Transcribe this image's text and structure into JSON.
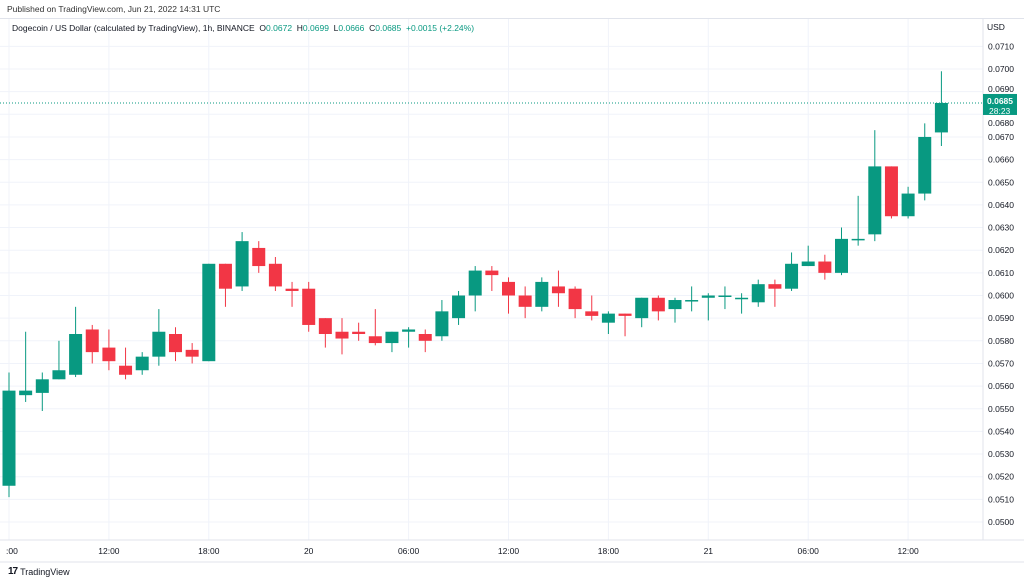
{
  "published": "Published on TradingView.com, Jun 21, 2022 14:31 UTC",
  "legend": {
    "symbol": "Dogecoin / US Dollar (calculated by TradingView), 1h, BINANCE",
    "o_label": "O",
    "o": "0.0672",
    "h_label": "H",
    "h": "0.0699",
    "l_label": "L",
    "l": "0.0666",
    "c_label": "C",
    "c": "0.0685",
    "change": "+0.0015 (+2.24%)"
  },
  "currency": "USD",
  "current_price": {
    "value": "0.0685",
    "countdown": "28:23"
  },
  "footer": {
    "brand": "TradingView"
  },
  "colors": {
    "up": "#089981",
    "down": "#f23645",
    "grid": "#f0f3fa",
    "text": "#131722"
  },
  "chart_data": {
    "type": "candlestick",
    "interval": "1h",
    "ylim": [
      0.0495,
      0.0715
    ],
    "y_ticks": [
      "0.0500",
      "0.0510",
      "0.0520",
      "0.0530",
      "0.0540",
      "0.0550",
      "0.0560",
      "0.0570",
      "0.0580",
      "0.0590",
      "0.0600",
      "0.0610",
      "0.0620",
      "0.0630",
      "0.0640",
      "0.0650",
      "0.0660",
      "0.0670",
      "0.0680",
      "0.0690",
      "0.0700",
      "0.0710"
    ],
    "x_ticks": [
      {
        "label": ":00",
        "index": 0
      },
      {
        "label": "12:00",
        "index": 6
      },
      {
        "label": "18:00",
        "index": 12
      },
      {
        "label": "20",
        "index": 18
      },
      {
        "label": "06:00",
        "index": 24
      },
      {
        "label": "12:00",
        "index": 30
      },
      {
        "label": "18:00",
        "index": 36
      },
      {
        "label": "21",
        "index": 42
      },
      {
        "label": "06:00",
        "index": 48
      },
      {
        "label": "12:00",
        "index": 54
      }
    ],
    "ohlc": [
      [
        0.0516,
        0.0566,
        0.0511,
        0.0558
      ],
      [
        0.0556,
        0.0584,
        0.0553,
        0.0558
      ],
      [
        0.0557,
        0.0566,
        0.0549,
        0.0563
      ],
      [
        0.0563,
        0.058,
        0.0563,
        0.0567
      ],
      [
        0.0565,
        0.0595,
        0.0564,
        0.0583
      ],
      [
        0.0585,
        0.0587,
        0.057,
        0.0575
      ],
      [
        0.0577,
        0.0585,
        0.0567,
        0.0571
      ],
      [
        0.0569,
        0.0577,
        0.0563,
        0.0565
      ],
      [
        0.0567,
        0.0575,
        0.0565,
        0.0573
      ],
      [
        0.0573,
        0.0594,
        0.0569,
        0.0584
      ],
      [
        0.0583,
        0.0586,
        0.0571,
        0.0575
      ],
      [
        0.0576,
        0.0579,
        0.057,
        0.0573
      ],
      [
        0.0571,
        0.0614,
        0.0571,
        0.0614
      ],
      [
        0.0614,
        0.0614,
        0.0595,
        0.0603
      ],
      [
        0.0604,
        0.0628,
        0.0602,
        0.0624
      ],
      [
        0.0621,
        0.0624,
        0.061,
        0.0613
      ],
      [
        0.0614,
        0.0617,
        0.0602,
        0.0604
      ],
      [
        0.0603,
        0.0606,
        0.0595,
        0.0602
      ],
      [
        0.0603,
        0.0606,
        0.0584,
        0.0587
      ],
      [
        0.059,
        0.059,
        0.0577,
        0.0583
      ],
      [
        0.0584,
        0.059,
        0.0574,
        0.0581
      ],
      [
        0.0584,
        0.0588,
        0.058,
        0.0583
      ],
      [
        0.0582,
        0.0594,
        0.0578,
        0.0579
      ],
      [
        0.0579,
        0.0584,
        0.0575,
        0.0584
      ],
      [
        0.0584,
        0.0586,
        0.0577,
        0.0585
      ],
      [
        0.0583,
        0.0585,
        0.0575,
        0.058
      ],
      [
        0.0582,
        0.0598,
        0.058,
        0.0593
      ],
      [
        0.059,
        0.0602,
        0.0587,
        0.06
      ],
      [
        0.06,
        0.0613,
        0.0593,
        0.0611
      ],
      [
        0.0611,
        0.0613,
        0.0602,
        0.0609
      ],
      [
        0.0606,
        0.0608,
        0.0592,
        0.06
      ],
      [
        0.06,
        0.0604,
        0.059,
        0.0595
      ],
      [
        0.0595,
        0.0608,
        0.0593,
        0.0606
      ],
      [
        0.0604,
        0.0611,
        0.0595,
        0.0601
      ],
      [
        0.0603,
        0.0604,
        0.059,
        0.0594
      ],
      [
        0.0593,
        0.06,
        0.0589,
        0.0591
      ],
      [
        0.0588,
        0.0593,
        0.0583,
        0.0592
      ],
      [
        0.0592,
        0.0592,
        0.0582,
        0.0591
      ],
      [
        0.059,
        0.0599,
        0.0586,
        0.0599
      ],
      [
        0.0599,
        0.06,
        0.0589,
        0.0593
      ],
      [
        0.0594,
        0.0599,
        0.0588,
        0.0598
      ],
      [
        0.0598,
        0.0604,
        0.0593,
        0.0598
      ],
      [
        0.0599,
        0.0601,
        0.0589,
        0.06
      ],
      [
        0.06,
        0.0604,
        0.0594,
        0.06
      ],
      [
        0.0599,
        0.0601,
        0.0592,
        0.0599
      ],
      [
        0.0597,
        0.0607,
        0.0595,
        0.0605
      ],
      [
        0.0605,
        0.0607,
        0.0595,
        0.0603
      ],
      [
        0.0603,
        0.0619,
        0.0602,
        0.0614
      ],
      [
        0.0613,
        0.0622,
        0.0613,
        0.0615
      ],
      [
        0.0615,
        0.0618,
        0.0607,
        0.061
      ],
      [
        0.061,
        0.063,
        0.0609,
        0.0625
      ],
      [
        0.0625,
        0.0644,
        0.0622,
        0.0625
      ],
      [
        0.0627,
        0.0673,
        0.0624,
        0.0657
      ],
      [
        0.0657,
        0.0657,
        0.0634,
        0.0635
      ],
      [
        0.0635,
        0.0648,
        0.0634,
        0.0645
      ],
      [
        0.0645,
        0.0676,
        0.0642,
        0.067
      ],
      [
        0.0672,
        0.0699,
        0.0666,
        0.0685
      ]
    ]
  }
}
